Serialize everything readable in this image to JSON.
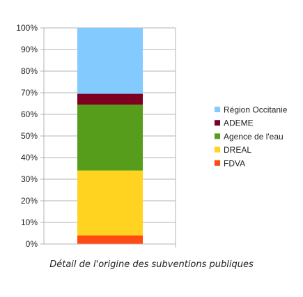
{
  "chart_data": {
    "type": "bar",
    "stacked": true,
    "normalized_percent": true,
    "categories": [
      ""
    ],
    "ylim": [
      0,
      100
    ],
    "y_ticks": [
      "0%",
      "10%",
      "20%",
      "30%",
      "40%",
      "50%",
      "60%",
      "70%",
      "80%",
      "90%",
      "100%"
    ],
    "grid": true,
    "legend_position": "right",
    "series": [
      {
        "name": "FDVA",
        "values": [
          4
        ],
        "color": "#ff4a12"
      },
      {
        "name": "DREAL",
        "values": [
          30
        ],
        "color": "#ffd320"
      },
      {
        "name": "Agence de l'eau",
        "values": [
          30.5
        ],
        "color": "#579d1c"
      },
      {
        "name": "ADEME",
        "values": [
          5
        ],
        "color": "#7e0021"
      },
      {
        "name": "Région Occitanie",
        "values": [
          30.5
        ],
        "color": "#83caff"
      }
    ],
    "legend_order": [
      "Région Occitanie",
      "ADEME",
      "Agence de l'eau",
      "DREAL",
      "FDVA"
    ]
  },
  "caption": "Détail de l'origine des subventions publiques"
}
